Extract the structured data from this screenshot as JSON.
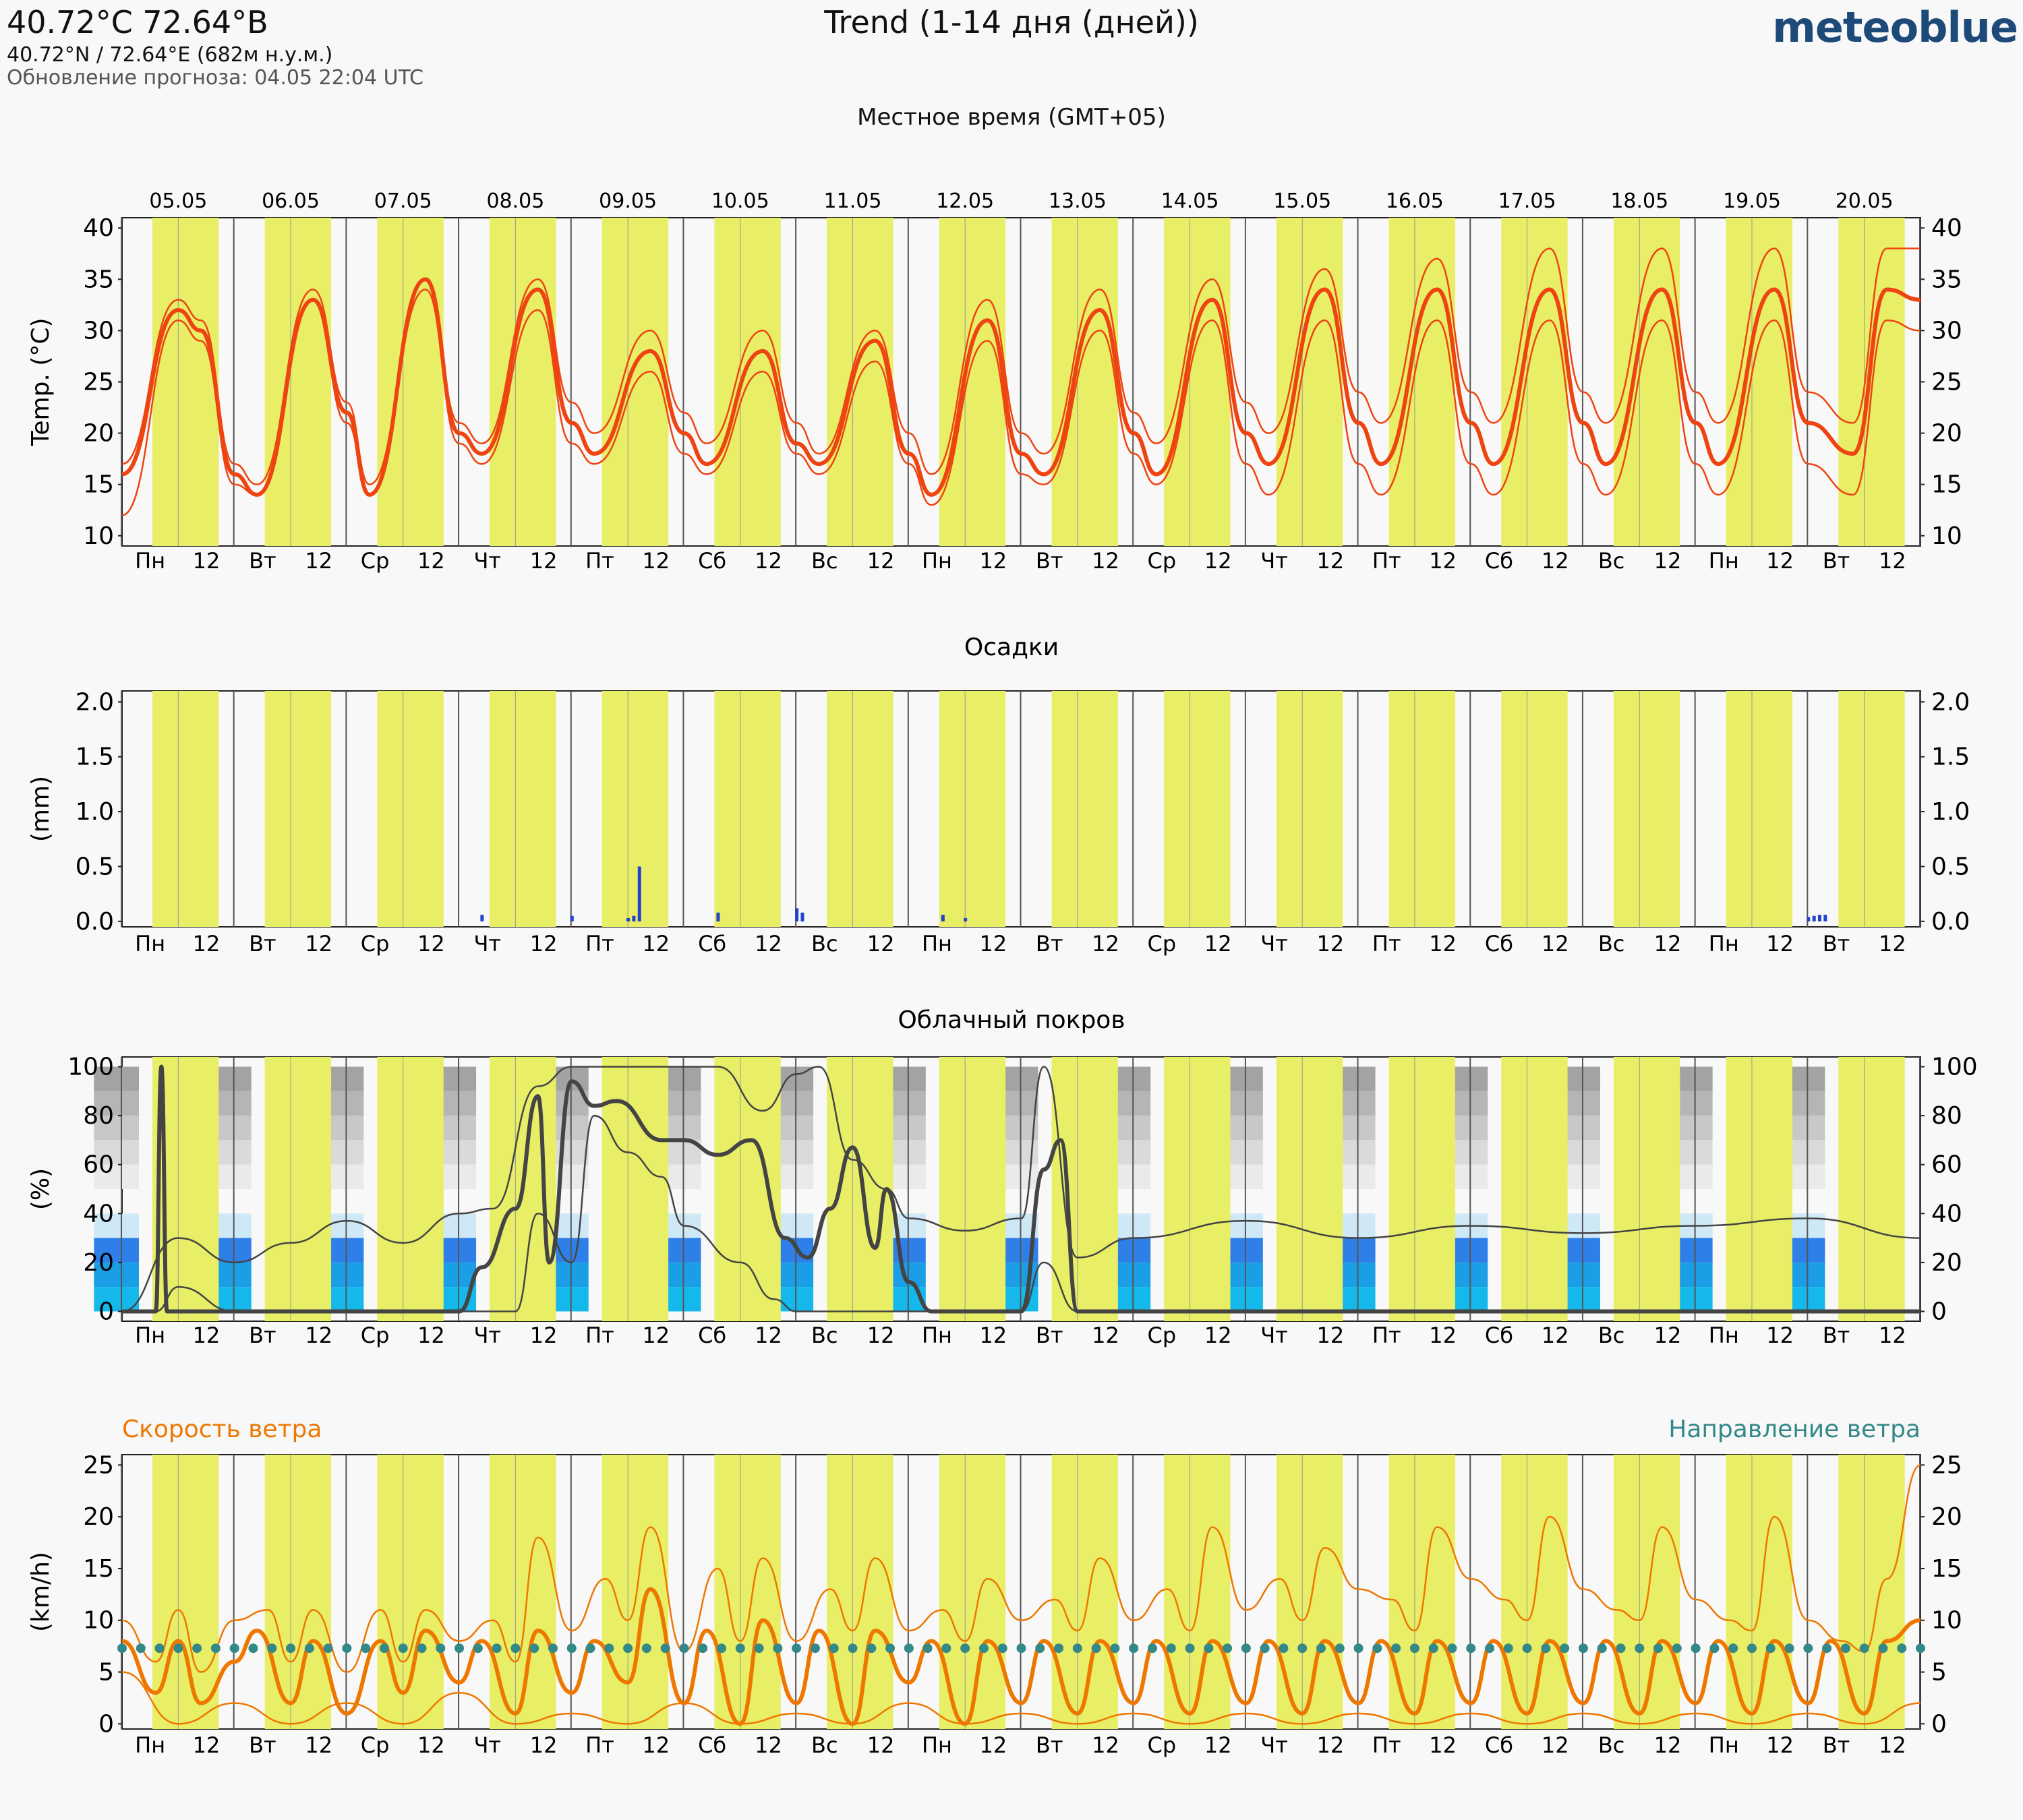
{
  "header": {
    "location_title": "40.72°C 72.64°В",
    "coordinates": "40.72°N / 72.64°E (682м н.у.м.)",
    "updated": "Обновление прогноза: 04.05 22:04 UTC",
    "chart_title": "Trend (1-14 дня (дней))",
    "brand": "meteoblue",
    "local_time_label": "Местное время (GMT+05)"
  },
  "days": [
    "Пн",
    "Вт",
    "Ср",
    "Чт",
    "Пт",
    "Сб",
    "Вс",
    "Пн",
    "Вт",
    "Ср",
    "Чт",
    "Пт",
    "Сб",
    "Вс",
    "Пн",
    "Вт"
  ],
  "noon_label": "12",
  "dates": [
    "05.05",
    "06.05",
    "07.05",
    "08.05",
    "09.05",
    "10.05",
    "11.05",
    "12.05",
    "13.05",
    "14.05",
    "15.05",
    "16.05",
    "17.05",
    "18.05",
    "19.05",
    "20.05"
  ],
  "colors": {
    "daylight": "#e8ee66",
    "temperature": "#ee4411",
    "precipitation": "#2244cc",
    "cloud_line": "#444444",
    "wind_speed": "#ee7700",
    "wind_direction": "#338888"
  },
  "chart_data": [
    {
      "type": "line",
      "panel": "temperature",
      "ylabel": "Temp. (°C)",
      "ylim": [
        9,
        41
      ],
      "yticks": [
        10,
        15,
        20,
        25,
        30,
        35,
        40
      ],
      "x_unit": "days from Mon 05.05 00:00 local",
      "series": [
        {
          "role": "main",
          "x": [
            0,
            0.5,
            0.7,
            1.0,
            1.2,
            1.7,
            2.0,
            2.2,
            2.7,
            3.0,
            3.2,
            3.7,
            4.0,
            4.2,
            4.7,
            5.0,
            5.2,
            5.7,
            6.0,
            6.2,
            6.7,
            7.0,
            7.2,
            7.7,
            8.0,
            8.2,
            8.7,
            9.0,
            9.2,
            9.7,
            10.0,
            10.2,
            10.7,
            11.0,
            11.2,
            11.7,
            12.0,
            12.2,
            12.7,
            13.0,
            13.2,
            13.7,
            14.0,
            14.2,
            14.7,
            15.0,
            15.4,
            15.7,
            16.0
          ],
          "values": [
            16,
            32,
            30,
            16,
            14,
            33,
            22,
            14,
            35,
            20,
            18,
            34,
            21,
            18,
            28,
            20,
            17,
            28,
            19,
            17,
            29,
            18,
            14,
            31,
            18,
            16,
            32,
            20,
            16,
            33,
            20,
            17,
            34,
            21,
            17,
            34,
            21,
            17,
            34,
            21,
            17,
            34,
            21,
            17,
            34,
            21,
            18,
            34,
            33
          ]
        },
        {
          "role": "ensemble-high",
          "x": [
            0,
            0.5,
            0.7,
            1.0,
            1.2,
            1.7,
            2.0,
            2.2,
            2.7,
            3.0,
            3.2,
            3.7,
            4.0,
            4.2,
            4.7,
            5.0,
            5.2,
            5.7,
            6.0,
            6.2,
            6.7,
            7.0,
            7.2,
            7.7,
            8.0,
            8.2,
            8.7,
            9.0,
            9.2,
            9.7,
            10.0,
            10.2,
            10.7,
            11.0,
            11.2,
            11.7,
            12.0,
            12.2,
            12.7,
            13.0,
            13.2,
            13.7,
            14.0,
            14.2,
            14.7,
            15.0,
            15.4,
            15.7,
            16.0
          ],
          "values": [
            17,
            33,
            31,
            17,
            15,
            34,
            23,
            15,
            35,
            21,
            19,
            35,
            23,
            20,
            30,
            22,
            19,
            30,
            21,
            18,
            30,
            20,
            16,
            33,
            20,
            18,
            34,
            22,
            19,
            35,
            23,
            20,
            36,
            24,
            21,
            37,
            24,
            21,
            38,
            24,
            21,
            38,
            24,
            21,
            38,
            24,
            21,
            38,
            38
          ]
        },
        {
          "role": "ensemble-low",
          "x": [
            0,
            0.5,
            0.7,
            1.0,
            1.2,
            1.7,
            2.0,
            2.2,
            2.7,
            3.0,
            3.2,
            3.7,
            4.0,
            4.2,
            4.7,
            5.0,
            5.2,
            5.7,
            6.0,
            6.2,
            6.7,
            7.0,
            7.2,
            7.7,
            8.0,
            8.2,
            8.7,
            9.0,
            9.2,
            9.7,
            10.0,
            10.2,
            10.7,
            11.0,
            11.2,
            11.7,
            12.0,
            12.2,
            12.7,
            13.0,
            13.2,
            13.7,
            14.0,
            14.2,
            14.7,
            15.0,
            15.4,
            15.7,
            16.0
          ],
          "values": [
            12,
            31,
            29,
            15,
            14,
            33,
            21,
            14,
            34,
            19,
            17,
            32,
            19,
            17,
            26,
            18,
            16,
            26,
            18,
            16,
            27,
            17,
            13,
            29,
            16,
            15,
            30,
            18,
            15,
            31,
            17,
            14,
            31,
            17,
            14,
            31,
            17,
            14,
            31,
            17,
            14,
            31,
            17,
            14,
            31,
            17,
            14,
            31,
            30
          ]
        }
      ]
    },
    {
      "type": "bar",
      "panel": "precipitation",
      "title": "Осадки",
      "ylabel": "(mm)",
      "ylim": [
        -0.05,
        2.1
      ],
      "yticks": [
        "0.0",
        "0.5",
        "1.0",
        "1.5",
        "2.0"
      ],
      "x": [
        3.2,
        4.0,
        4.5,
        4.55,
        4.6,
        5.3,
        6.0,
        6.05,
        7.3,
        7.5,
        15.0,
        15.05,
        15.1,
        15.15
      ],
      "values": [
        0.06,
        0.05,
        0.03,
        0.05,
        0.5,
        0.08,
        0.12,
        0.08,
        0.06,
        0.03,
        0.04,
        0.05,
        0.06,
        0.06
      ]
    },
    {
      "type": "line",
      "panel": "cloud-cover",
      "title": "Облачный покров",
      "ylabel": "(%)",
      "ylim": [
        -4,
        104
      ],
      "yticks": [
        0,
        20,
        40,
        60,
        80,
        100
      ],
      "series": [
        {
          "role": "main",
          "x": [
            0,
            0.3,
            0.35,
            0.4,
            0.45,
            3.0,
            3.2,
            3.5,
            3.7,
            3.8,
            4.0,
            4.2,
            4.4,
            4.8,
            5.0,
            5.3,
            5.6,
            5.9,
            6.1,
            6.3,
            6.5,
            6.7,
            6.8,
            7.0,
            7.2,
            8.0,
            8.2,
            8.35,
            8.5,
            16.0
          ],
          "values": [
            0,
            0,
            100,
            0,
            0,
            0,
            18,
            42,
            88,
            20,
            94,
            84,
            86,
            70,
            70,
            64,
            70,
            30,
            22,
            42,
            67,
            26,
            50,
            12,
            0,
            0,
            58,
            70,
            0,
            0
          ]
        },
        {
          "role": "ensemble-high",
          "x": [
            0,
            0.5,
            1.0,
            1.5,
            2.0,
            2.5,
            3.0,
            3.3,
            3.7,
            4.0,
            4.3,
            5.0,
            5.3,
            5.7,
            6.0,
            6.2,
            6.5,
            6.8,
            7.0,
            7.5,
            8.0,
            8.2,
            8.5,
            9.0,
            10.0,
            11.0,
            12.0,
            13.0,
            14.0,
            15.0,
            16.0
          ],
          "values": [
            0,
            30,
            20,
            28,
            37,
            28,
            40,
            42,
            92,
            100,
            100,
            100,
            100,
            82,
            97,
            100,
            62,
            50,
            38,
            33,
            38,
            100,
            22,
            30,
            37,
            30,
            35,
            32,
            35,
            38,
            30
          ]
        },
        {
          "role": "ensemble-low",
          "x": [
            0,
            0.3,
            0.5,
            1.0,
            1.2,
            2.0,
            3.0,
            3.5,
            3.7,
            4.0,
            4.2,
            4.5,
            4.8,
            5.0,
            5.5,
            5.8,
            6.0,
            7.0,
            8.0,
            8.2,
            8.5
          ],
          "values": [
            0,
            0,
            10,
            0,
            0,
            0,
            0,
            0,
            40,
            20,
            80,
            65,
            55,
            35,
            20,
            5,
            0,
            0,
            0,
            20,
            0
          ]
        }
      ]
    },
    {
      "type": "line",
      "panel": "wind",
      "ylabel": "(km/h)",
      "legend_left": "Скорость ветра",
      "legend_right": "Направление ветра",
      "ylim": [
        -0.5,
        26
      ],
      "yticks": [
        0,
        5,
        10,
        15,
        20,
        25
      ],
      "series": [
        {
          "role": "main",
          "x": [
            0,
            0.3,
            0.5,
            0.7,
            1.0,
            1.2,
            1.5,
            1.7,
            2.0,
            2.3,
            2.5,
            2.7,
            3.0,
            3.2,
            3.5,
            3.7,
            4.0,
            4.2,
            4.5,
            4.7,
            5.0,
            5.2,
            5.5,
            5.7,
            6.0,
            6.2,
            6.5,
            6.7,
            7.0,
            7.2,
            7.5,
            7.7,
            8.0,
            8.2,
            8.5,
            8.7,
            9.0,
            9.2,
            9.5,
            9.7,
            10.0,
            10.2,
            10.5,
            10.7,
            11.0,
            11.2,
            11.5,
            11.7,
            12.0,
            12.2,
            12.5,
            12.7,
            13.0,
            13.2,
            13.5,
            13.7,
            14.0,
            14.2,
            14.5,
            14.7,
            15.0,
            15.2,
            15.5,
            15.7,
            16.0
          ],
          "values": [
            8,
            3,
            8,
            2,
            6,
            9,
            2,
            8,
            1,
            8,
            3,
            9,
            4,
            8,
            1,
            9,
            3,
            8,
            4,
            13,
            2,
            9,
            0,
            10,
            2,
            9,
            0,
            9,
            4,
            8,
            0,
            8,
            2,
            8,
            1,
            8,
            2,
            8,
            1,
            8,
            2,
            8,
            1,
            8,
            2,
            8,
            1,
            8,
            2,
            8,
            1,
            8,
            2,
            8,
            1,
            8,
            2,
            8,
            1,
            8,
            2,
            8,
            1,
            8,
            10
          ]
        },
        {
          "role": "ensemble-high",
          "x": [
            0,
            0.3,
            0.5,
            0.7,
            1.0,
            1.3,
            1.5,
            1.7,
            2.0,
            2.3,
            2.5,
            2.7,
            3.0,
            3.3,
            3.5,
            3.7,
            4.0,
            4.3,
            4.5,
            4.7,
            5.0,
            5.3,
            5.5,
            5.7,
            6.0,
            6.3,
            6.5,
            6.7,
            7.0,
            7.3,
            7.5,
            7.7,
            8.0,
            8.3,
            8.5,
            8.7,
            9.0,
            9.3,
            9.5,
            9.7,
            10.0,
            10.3,
            10.5,
            10.7,
            11.0,
            11.3,
            11.5,
            11.7,
            12.0,
            12.3,
            12.5,
            12.7,
            13.0,
            13.3,
            13.5,
            13.7,
            14.0,
            14.3,
            14.5,
            14.7,
            15.0,
            15.3,
            15.5,
            15.7,
            16.0
          ],
          "values": [
            10,
            6,
            11,
            5,
            10,
            11,
            6,
            11,
            5,
            11,
            6,
            11,
            8,
            10,
            6,
            18,
            9,
            14,
            10,
            19,
            7,
            15,
            8,
            16,
            8,
            13,
            9,
            16,
            9,
            11,
            8,
            14,
            10,
            12,
            9,
            16,
            10,
            13,
            9,
            19,
            11,
            14,
            10,
            17,
            13,
            12,
            9,
            19,
            14,
            12,
            10,
            20,
            13,
            11,
            10,
            19,
            12,
            10,
            9,
            20,
            10,
            8,
            7,
            14,
            25
          ]
        },
        {
          "role": "ensemble-low",
          "x": [
            0,
            0.5,
            1.0,
            1.5,
            2.0,
            2.5,
            3.0,
            3.5,
            4.0,
            4.5,
            5.0,
            5.5,
            6.0,
            6.5,
            7.0,
            7.5,
            8.0,
            8.5,
            9.0,
            9.5,
            10.0,
            10.5,
            11.0,
            11.5,
            12.0,
            12.5,
            13.0,
            13.5,
            14.0,
            14.5,
            15.0,
            15.5,
            16.0
          ],
          "values": [
            5,
            0,
            2,
            0,
            2,
            0,
            3,
            0,
            1,
            0,
            2,
            0,
            1,
            0,
            2,
            0,
            1,
            0,
            1,
            0,
            1,
            0,
            1,
            0,
            1,
            0,
            1,
            0,
            1,
            0,
            1,
            0,
            2
          ]
        }
      ]
    }
  ]
}
